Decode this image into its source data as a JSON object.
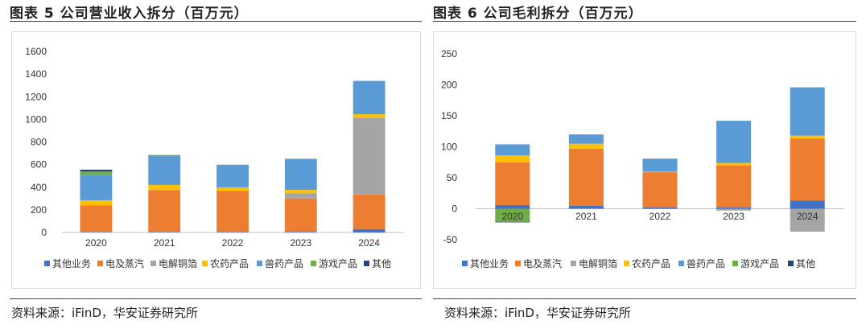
{
  "left": {
    "title": "图表 5 公司营业收入拆分（百万元）",
    "source": "资料来源：iFinD，华安证券研究所"
  },
  "right": {
    "title": "图表 6 公司毛利拆分（百万元）",
    "source": "资料来源：iFinD，华安证券研究所"
  },
  "chart_data": [
    {
      "type": "bar",
      "stacked": true,
      "title": "",
      "xlabel": "",
      "ylabel": "",
      "categories": [
        "2020",
        "2021",
        "2022",
        "2023",
        "2024"
      ],
      "ylim": [
        0,
        1600
      ],
      "yticks": [
        0,
        200,
        400,
        600,
        800,
        1000,
        1200,
        1400,
        1600
      ],
      "grid": false,
      "legend": "bottom",
      "series": [
        {
          "name": "其他业务",
          "color": "#4472C4",
          "values": [
            5,
            5,
            4,
            6,
            30
          ]
        },
        {
          "name": "电及蒸汽",
          "color": "#ED7D31",
          "values": [
            235,
            370,
            365,
            295,
            305
          ]
        },
        {
          "name": "电解铜箔",
          "color": "#A5A5A5",
          "values": [
            0,
            0,
            0,
            45,
            680
          ]
        },
        {
          "name": "农药产品",
          "color": "#FFC000",
          "values": [
            45,
            45,
            30,
            30,
            30
          ]
        },
        {
          "name": "兽药产品",
          "color": "#5B9BD5",
          "values": [
            225,
            255,
            200,
            275,
            295
          ]
        },
        {
          "name": "游戏产品",
          "color": "#70AD47",
          "values": [
            30,
            10,
            0,
            0,
            0
          ]
        },
        {
          "name": "其他",
          "color": "#264478",
          "values": [
            15,
            0,
            0,
            0,
            0
          ]
        }
      ]
    },
    {
      "type": "bar",
      "stacked": true,
      "title": "",
      "xlabel": "",
      "ylabel": "",
      "categories": [
        "2020",
        "2021",
        "2022",
        "2023",
        "2024"
      ],
      "ylim": [
        -50,
        250
      ],
      "yticks": [
        -50,
        0,
        50,
        100,
        150,
        200,
        250
      ],
      "grid": false,
      "legend": "bottom",
      "series": [
        {
          "name": "其他业务",
          "color": "#4472C4",
          "values": [
            6,
            5,
            2,
            2,
            13
          ]
        },
        {
          "name": "电及蒸汽",
          "color": "#ED7D31",
          "values": [
            69,
            92,
            57,
            68,
            100
          ]
        },
        {
          "name": "电解铜箔",
          "color": "#A5A5A5",
          "values": [
            0,
            0,
            0,
            -3,
            -37
          ]
        },
        {
          "name": "农药产品",
          "color": "#FFC000",
          "values": [
            11,
            8,
            1,
            4,
            5
          ]
        },
        {
          "name": "兽药产品",
          "color": "#5B9BD5",
          "values": [
            18,
            15,
            20,
            68,
            78
          ]
        },
        {
          "name": "游戏产品",
          "color": "#70AD47",
          "values": [
            -21,
            0,
            1,
            0,
            0
          ]
        },
        {
          "name": "其他",
          "color": "#264478",
          "values": [
            -1,
            0,
            0,
            0,
            0
          ]
        }
      ]
    }
  ]
}
